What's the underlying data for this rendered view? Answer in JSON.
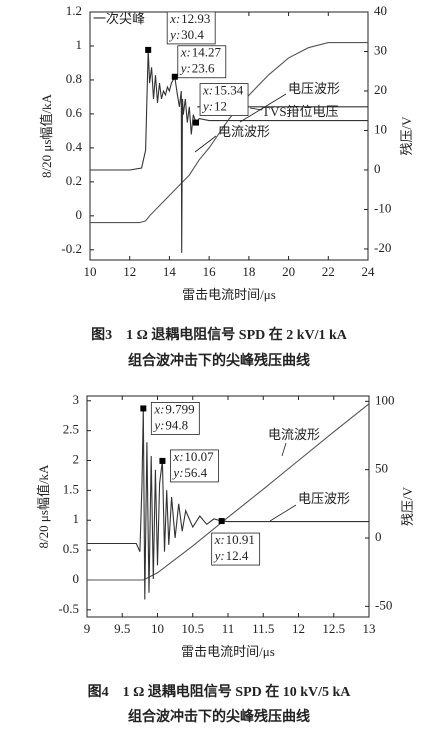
{
  "chart_data": [
    {
      "type": "line",
      "xlabel": "雷击电流时间/μs",
      "ylabel": "8/20 μs幅值/kA",
      "y2label": "残压/V",
      "xlim": [
        10,
        24
      ],
      "xticks": [
        10,
        12,
        14,
        16,
        18,
        20,
        22,
        24
      ],
      "ylim": [
        -0.26,
        1.2
      ],
      "yticks": [
        -0.2,
        0,
        0.2,
        0.4,
        0.6,
        0.8,
        1,
        1.2
      ],
      "y2lim": [
        -22.8,
        40
      ],
      "y2ticks": [
        -20,
        -10,
        0,
        10,
        20,
        30,
        40
      ],
      "series": [
        {
          "name": "电流波形",
          "color": "#555555",
          "x": [
            10,
            11,
            12,
            12.5,
            12.8,
            13,
            13.5,
            14,
            14.5,
            15,
            15.5,
            16,
            17,
            18,
            19,
            20,
            21,
            22,
            23,
            24
          ],
          "values": [
            -0.04,
            -0.04,
            -0.04,
            -0.04,
            -0.03,
            0,
            0.06,
            0.12,
            0.18,
            0.24,
            0.33,
            0.4,
            0.57,
            0.71,
            0.83,
            0.93,
            0.99,
            1.02,
            1.02,
            1.02
          ]
        },
        {
          "name": "电压波形",
          "color": "#333333",
          "axis": "y2",
          "x": [
            10,
            11,
            12,
            12.6,
            12.8,
            12.93,
            13.0,
            13.1,
            13.2,
            13.3,
            13.4,
            13.5,
            13.6,
            13.7,
            13.8,
            13.9,
            14.0,
            14.1,
            14.27,
            14.4,
            14.5,
            14.6,
            14.62,
            14.66,
            14.7,
            14.8,
            14.9,
            15.0,
            15.1,
            15.2,
            15.34,
            15.5,
            16,
            18,
            20,
            22,
            24
          ],
          "values": [
            0,
            0,
            0,
            0.5,
            5,
            30.4,
            22,
            26,
            18,
            24,
            17,
            22,
            18,
            20,
            19,
            21,
            20,
            22,
            23.6,
            19,
            16,
            20,
            -21,
            18,
            14,
            18,
            12,
            16,
            9,
            14,
            12,
            13,
            12.5,
            12.5,
            12.5,
            12.5,
            12.5
          ]
        },
        {
          "name": "TVS箝位电压",
          "color": "#333333",
          "axis": "y2",
          "x": [
            15.4,
            24
          ],
          "values": [
            16,
            16
          ]
        }
      ],
      "annotation_text": "一次尖峰",
      "datatip_labels": [
        "x:",
        "y:"
      ],
      "datatips": [
        {
          "x": 12.93,
          "y": 30.4
        },
        {
          "x": 14.27,
          "y": 23.6
        },
        {
          "x": 15.34,
          "y": 12
        }
      ],
      "caption": [
        "图3　1 Ω 退耦电阻信号 SPD 在 2 kV/1 kA",
        "组合波冲击下的尖峰残压曲线"
      ]
    },
    {
      "type": "line",
      "xlabel": "雷击电流时间/μs",
      "ylabel": "8/20 μs幅值/kA",
      "y2label": "残压/V",
      "xlim": [
        9,
        13
      ],
      "xticks": [
        9,
        9.5,
        10,
        10.5,
        11,
        11.5,
        12,
        12.5,
        13
      ],
      "ylim": [
        -0.62,
        3.08
      ],
      "yticks": [
        -0.5,
        0,
        0.5,
        1,
        1.5,
        2,
        2.5,
        3
      ],
      "y2lim": [
        -57.8,
        103.9
      ],
      "y2ticks": [
        -50,
        0,
        50,
        100
      ],
      "series": [
        {
          "name": "电流波形",
          "color": "#555555",
          "x": [
            9,
            9.5,
            9.8,
            10,
            10.5,
            11,
            11.5,
            12,
            12.5,
            13
          ],
          "values": [
            0,
            0,
            0,
            0.12,
            0.57,
            1.05,
            1.52,
            2.0,
            2.48,
            2.95
          ]
        },
        {
          "name": "电压波形",
          "color": "#333333",
          "axis": "y2",
          "x": [
            9,
            9.5,
            9.7,
            9.75,
            9.78,
            9.799,
            9.82,
            9.85,
            9.88,
            9.91,
            9.94,
            9.97,
            10.0,
            10.03,
            10.07,
            10.1,
            10.13,
            10.16,
            10.2,
            10.25,
            10.3,
            10.35,
            10.4,
            10.5,
            10.6,
            10.7,
            10.8,
            10.91,
            11,
            11.5,
            12,
            12.5,
            13
          ],
          "values": [
            -4,
            -4,
            -4,
            -10,
            40,
            94.8,
            -45,
            70,
            -40,
            60,
            -30,
            50,
            -20,
            40,
            56.4,
            -10,
            35,
            -5,
            30,
            0,
            25,
            5,
            20,
            8,
            16,
            10,
            14,
            12.4,
            12,
            12,
            12,
            12,
            12
          ]
        }
      ],
      "datatip_labels": [
        "x:",
        "y:"
      ],
      "datatips": [
        {
          "x": 9.799,
          "y": 94.8
        },
        {
          "x": 10.07,
          "y": 56.4
        },
        {
          "x": 10.91,
          "y": 12.4
        }
      ],
      "caption": [
        "图4　1 Ω 退耦电阻信号 SPD 在 10 kV/5 kA",
        "组合波冲击下的尖峰残压曲线"
      ]
    }
  ]
}
